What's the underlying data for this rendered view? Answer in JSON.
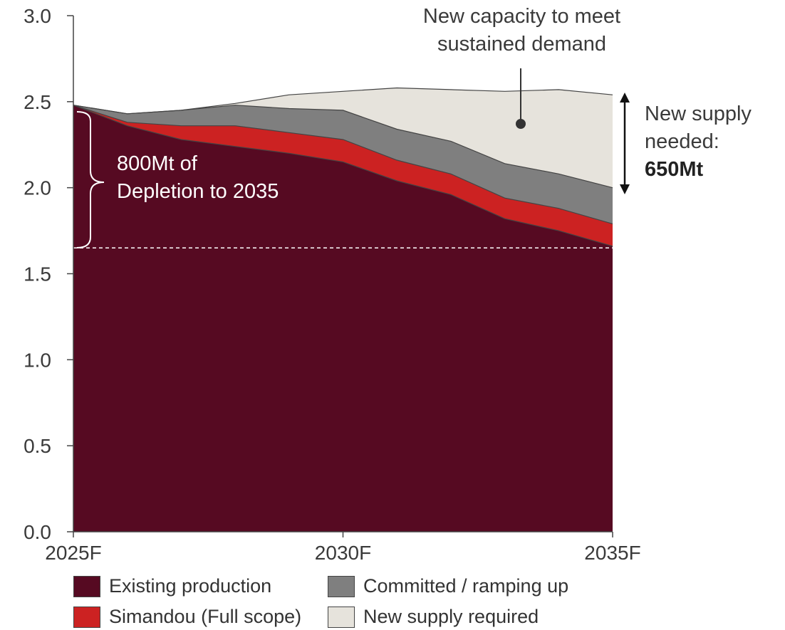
{
  "chart_data": {
    "type": "area",
    "stacked": true,
    "x": [
      2025,
      2026,
      2027,
      2028,
      2029,
      2030,
      2031,
      2032,
      2033,
      2034,
      2035
    ],
    "x_tick_labels": [
      "2025F",
      "2030F",
      "2035F"
    ],
    "y_tick_labels": [
      "0.0",
      "0.5",
      "1.0",
      "1.5",
      "2.0",
      "2.5",
      "3.0"
    ],
    "ylim": [
      0,
      3.0
    ],
    "grid": false,
    "legend_position": "bottom",
    "series": [
      {
        "name": "Existing production",
        "color": "#560a22",
        "values": [
          2.48,
          2.36,
          2.28,
          2.24,
          2.2,
          2.15,
          2.04,
          1.96,
          1.82,
          1.75,
          1.66
        ]
      },
      {
        "name": "Simandou (Full scope)",
        "color": "#cc2222",
        "values": [
          0.0,
          0.02,
          0.08,
          0.12,
          0.12,
          0.13,
          0.12,
          0.12,
          0.12,
          0.13,
          0.13
        ]
      },
      {
        "name": "Committed / ramping up",
        "color": "#7f7f7f",
        "values": [
          0.0,
          0.05,
          0.09,
          0.12,
          0.14,
          0.17,
          0.18,
          0.19,
          0.2,
          0.2,
          0.21
        ]
      },
      {
        "name": "New supply required",
        "color": "#e6e3dc",
        "values": [
          0.0,
          0.0,
          0.0,
          0.01,
          0.08,
          0.11,
          0.24,
          0.3,
          0.42,
          0.49,
          0.54
        ]
      }
    ],
    "reference_line_value": 1.65
  },
  "annotations": {
    "depletion_line1": "800Mt of",
    "depletion_line2": "Depletion to 2035",
    "callout_line1": "New capacity to meet",
    "callout_line2": "sustained demand",
    "needed_line1": "New supply",
    "needed_line2": "needed:",
    "needed_value": "650Mt"
  },
  "legend": [
    {
      "label": "Existing production",
      "color": "#560a22"
    },
    {
      "label": "Committed / ramping up",
      "color": "#7f7f7f"
    },
    {
      "label": "Simandou (Full scope)",
      "color": "#cc2222"
    },
    {
      "label": "New supply required",
      "color": "#e6e3dc"
    }
  ]
}
